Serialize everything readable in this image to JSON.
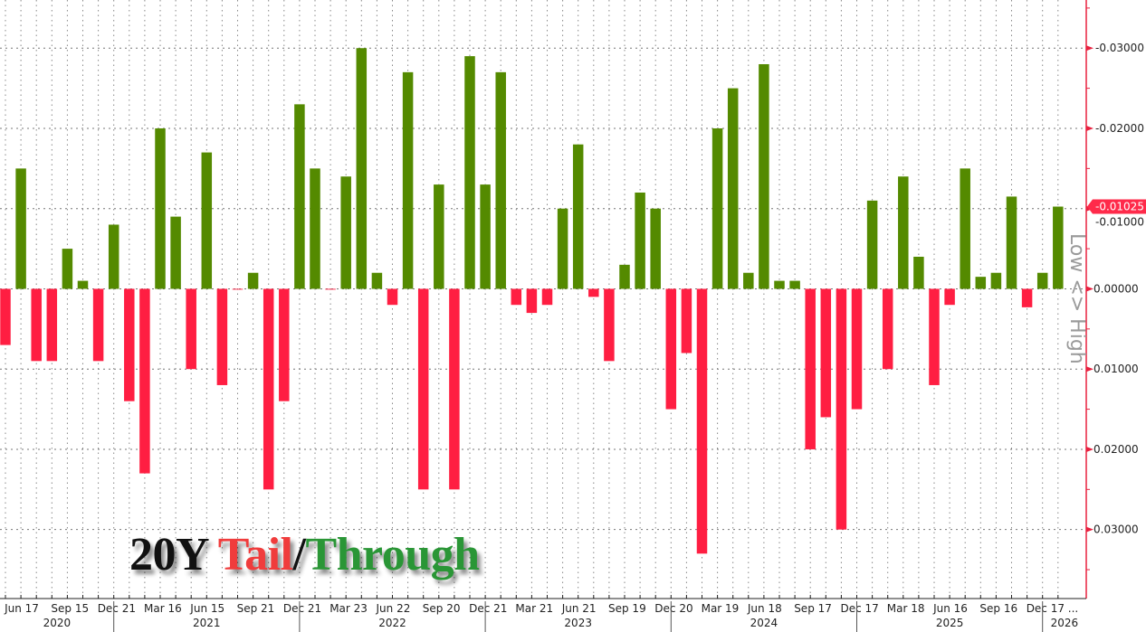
{
  "chart_data": {
    "type": "bar",
    "title_parts": [
      "20Y ",
      "Tail",
      "/",
      "Through"
    ],
    "title_colors": [
      "#111111",
      "#f03c3c",
      "#111111",
      "#2a9636"
    ],
    "ylabel": "Low <> High",
    "y_inverted": true,
    "ylim": [
      -0.036,
      0.0386
    ],
    "yticks": [
      -0.03,
      -0.02,
      -0.01,
      0.0,
      0.01,
      0.02,
      0.03
    ],
    "ytick_labels": [
      "-0.03000",
      "-0.02000",
      "-0.01000",
      "0.00000",
      "0.01000",
      "0.02000",
      "0.03000"
    ],
    "last_value_label": "-0.01025",
    "grid": true,
    "colors": {
      "negative": "#548a00",
      "positive": "#ff1e42",
      "axis": "#e8213f",
      "last_value_bg": "#ff2a4a"
    },
    "values": [
      0.007,
      -0.015,
      0.009,
      0.009,
      -0.005,
      -0.001,
      0.009,
      -0.008,
      0.014,
      0.023,
      -0.02,
      -0.009,
      0.01,
      -0.017,
      0.012,
      0.0001,
      -0.002,
      0.025,
      0.014,
      -0.023,
      -0.015,
      0.0001,
      -0.014,
      -0.03,
      -0.002,
      0.002,
      -0.027,
      0.025,
      -0.013,
      0.025,
      -0.029,
      -0.013,
      -0.027,
      0.002,
      0.003,
      0.002,
      -0.01,
      -0.018,
      0.001,
      0.009,
      -0.003,
      -0.012,
      -0.01,
      0.015,
      0.008,
      0.033,
      -0.02,
      -0.025,
      -0.002,
      -0.028,
      -0.001,
      -0.001,
      0.02,
      0.016,
      0.03,
      0.015,
      -0.011,
      0.01,
      -0.014,
      -0.004,
      0.012,
      0.002,
      -0.015,
      -0.0015,
      -0.002,
      -0.0115,
      0.0023,
      -0.002,
      -0.01025
    ],
    "x_tick_labels": [
      "Jun 17",
      "Sep 15",
      "Dec 21",
      "Mar 16",
      "Jun 15",
      "Sep 21",
      "Dec 21",
      "Mar 23",
      "Jun 22",
      "Sep 20",
      "Dec 21",
      "Mar 21",
      "Jun 21",
      "Sep 19",
      "Dec 20",
      "Mar 19",
      "Jun 18",
      "Sep 17",
      "Dec 17",
      "Mar 18",
      "Jun 16",
      "Sep 16",
      "Dec 17 ..."
    ],
    "years": [
      "2020",
      "2021",
      "2022",
      "2023",
      "2024",
      "2025",
      "2026"
    ]
  }
}
